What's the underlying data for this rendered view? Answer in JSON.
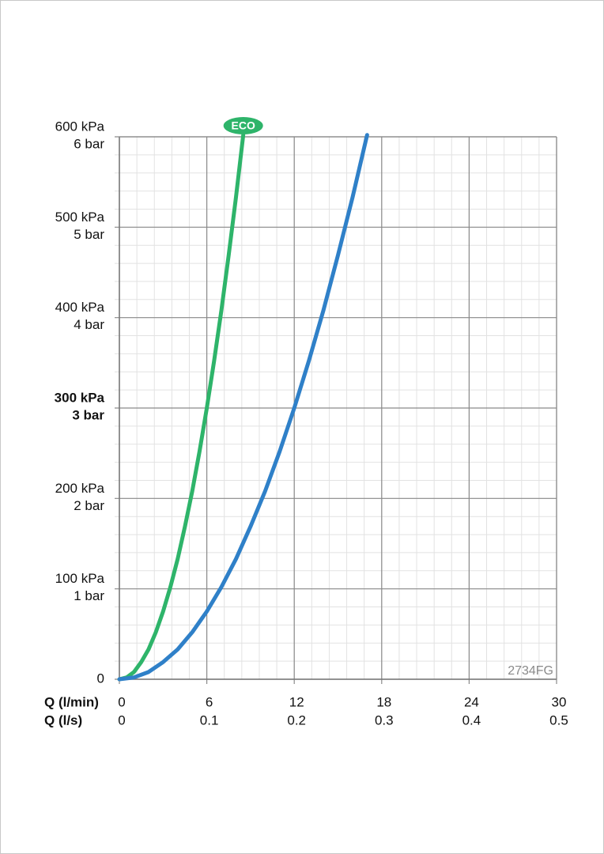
{
  "chart_data": {
    "type": "line",
    "x_label": "Q (l/min)",
    "x2_label": "Q (l/s)",
    "xlim": [
      0,
      30
    ],
    "xticks": [
      0,
      6,
      12,
      18,
      24,
      30
    ],
    "x2lim": [
      0,
      0.5
    ],
    "x2ticks": [
      0,
      0.1,
      0.2,
      0.3,
      0.4,
      0.5
    ],
    "ylim": [
      0,
      600
    ],
    "yticks": [
      0,
      {
        "value": 100,
        "label": "100 kPa"
      },
      {
        "value": 200,
        "label": "200 kPa"
      },
      {
        "value": 300,
        "label": "300 kPa"
      },
      {
        "value": 400,
        "label": "400 kPa"
      },
      {
        "value": 500,
        "label": "500 kPa"
      },
      {
        "value": 600,
        "label": "600 kPa"
      }
    ],
    "y2lim": [
      0,
      6
    ],
    "y2ticks": [
      {
        "value": 1,
        "label": "1 bar"
      },
      {
        "value": 2,
        "label": "2 bar"
      },
      {
        "value": 3,
        "label": "3 bar"
      },
      {
        "value": 4,
        "label": "4 bar"
      },
      {
        "value": 5,
        "label": "5 bar"
      },
      {
        "value": 6,
        "label": "6 bar"
      }
    ],
    "bold_ytick": 300,
    "grid": true,
    "xminor": 1.2,
    "yminor": 20,
    "code": "2734FG",
    "series": [
      {
        "name": "ECO",
        "color": "#2eb46a",
        "x": [
          0,
          0.5,
          1,
          1.5,
          2,
          2.5,
          3,
          3.5,
          4,
          4.5,
          5,
          5.5,
          6,
          6.5,
          7,
          7.5,
          8,
          8.5
        ],
        "values": [
          0,
          2,
          8,
          19,
          33,
          52,
          75,
          102,
          133,
          169,
          208,
          252,
          300,
          352,
          408,
          469,
          533,
          602
        ]
      },
      {
        "color": "#2f80c8",
        "x": [
          0,
          1,
          2,
          3,
          4,
          5,
          6,
          7,
          8,
          9,
          10,
          11,
          12,
          13,
          14,
          15,
          16,
          17
        ],
        "values": [
          0,
          2,
          8,
          19,
          33,
          52,
          75,
          102,
          133,
          169,
          208,
          252,
          300,
          352,
          408,
          469,
          533,
          602
        ]
      }
    ]
  }
}
